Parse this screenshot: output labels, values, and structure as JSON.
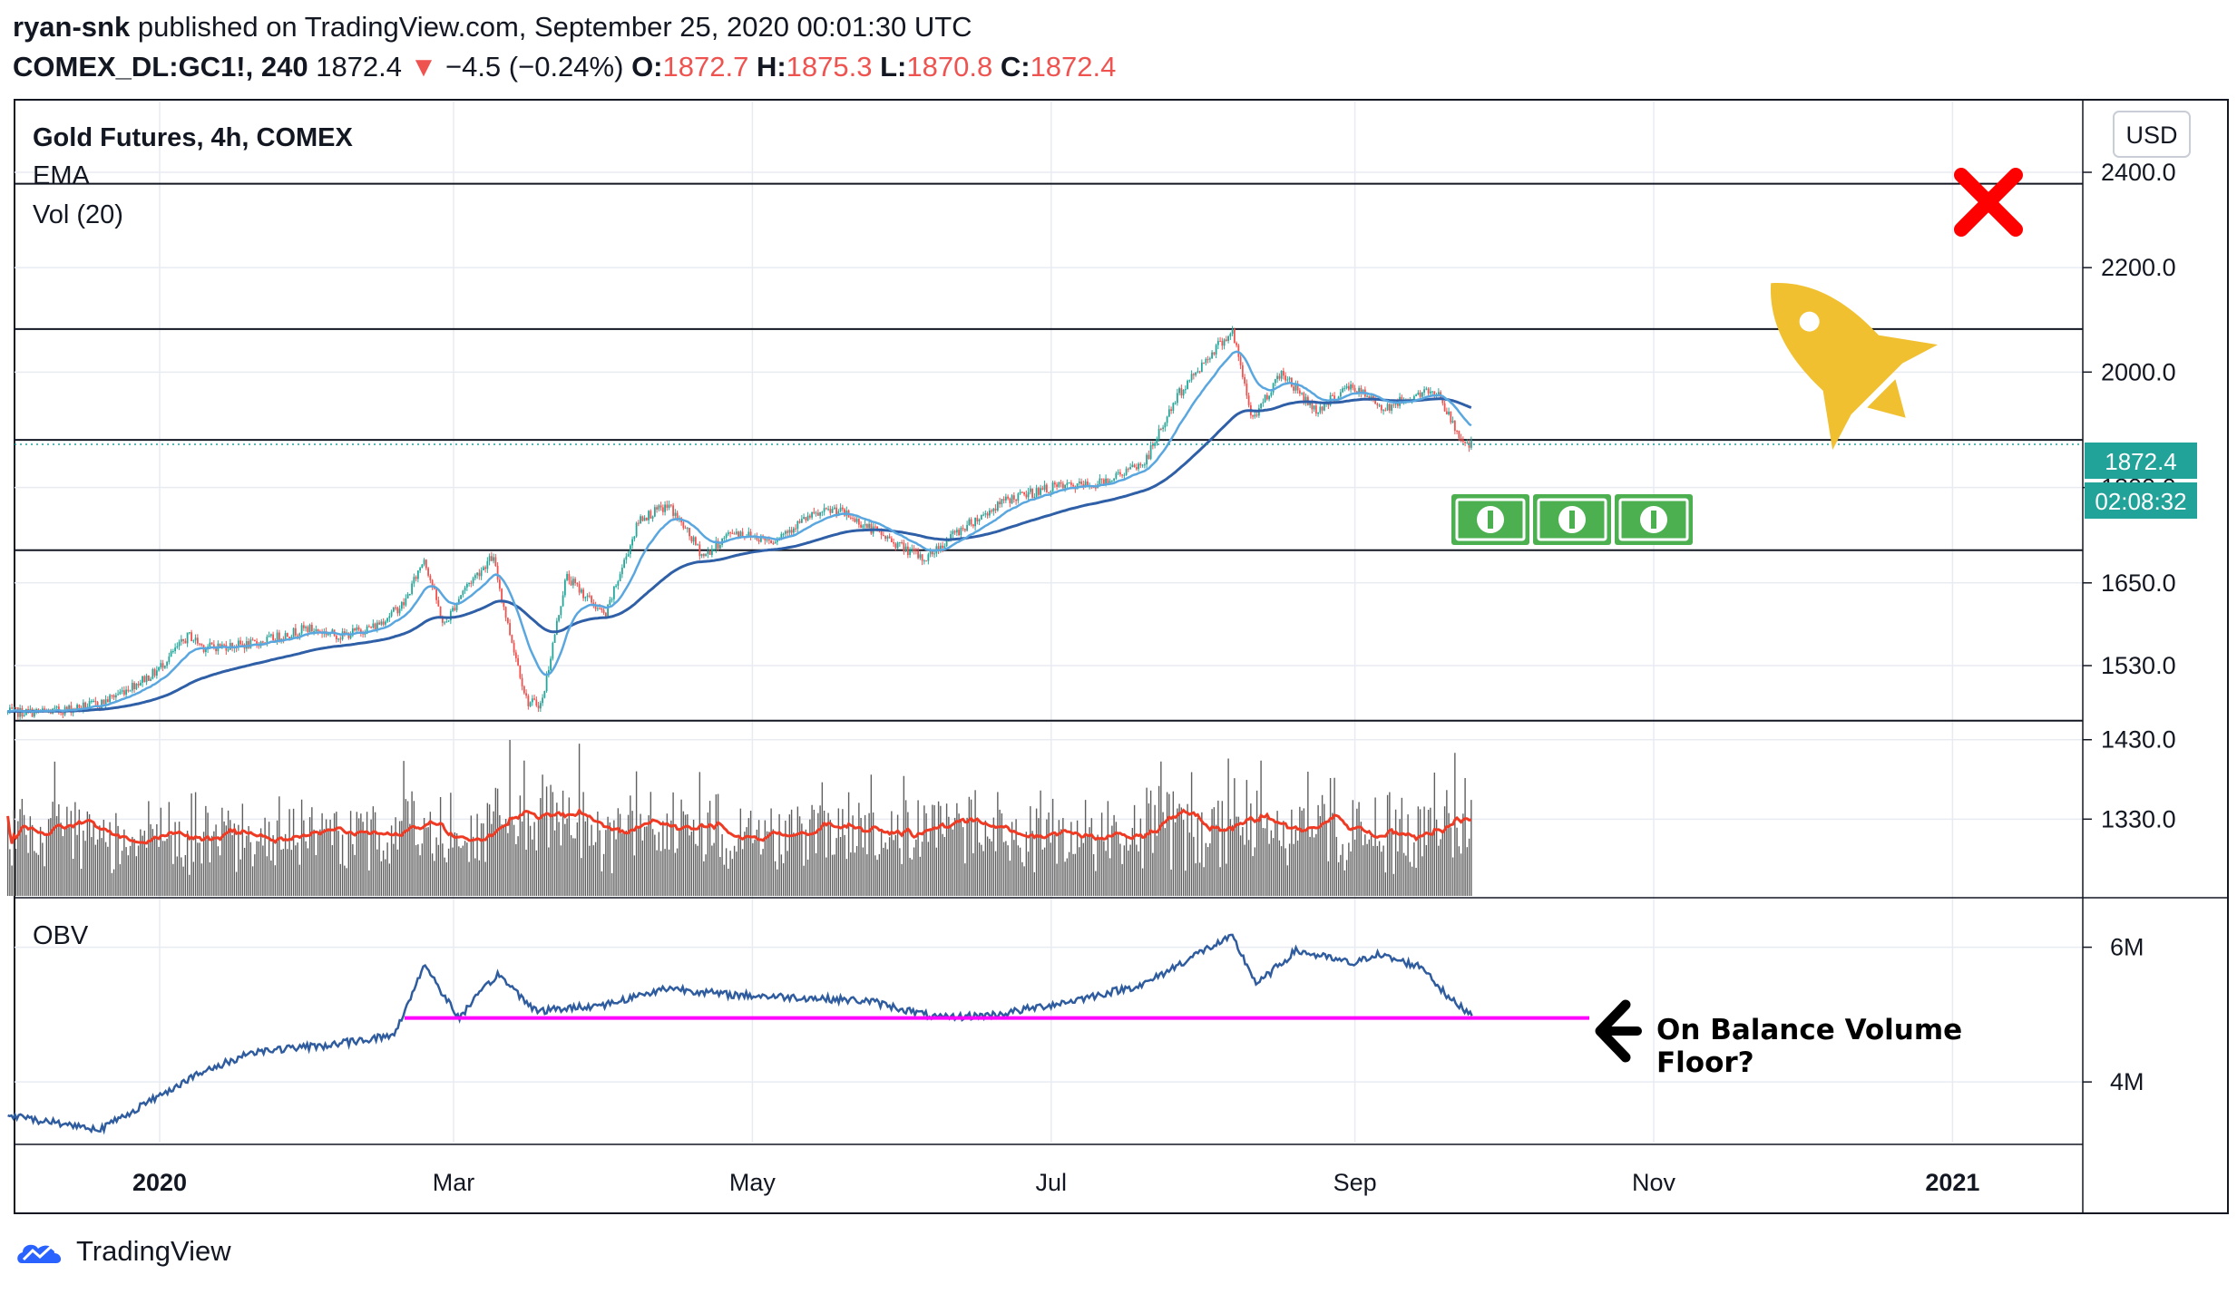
{
  "header": {
    "author": "ryan-snk",
    "published_text": "published on TradingView.com, September 25, 2020 00:01:30 UTC",
    "symbol_interval": "COMEX_DL:GC1!, 240",
    "last_price": "1872.4",
    "change_arrow": "▼",
    "change": "−4.5 (−0.24%)",
    "open_label": "O:",
    "open": "1872.7",
    "high_label": "H:",
    "high": "1875.3",
    "low_label": "L:",
    "low": "1870.8",
    "close_label": "C:",
    "close": "1872.4"
  },
  "legend": {
    "title": "Gold Futures, 4h, COMEX",
    "ema": "EMA",
    "vol": "Vol (20)",
    "obv": "OBV"
  },
  "price_axis": {
    "currency_button": "USD",
    "last_price_tag": "1872.4",
    "countdown_tag": "02:08:32"
  },
  "obv_axis": {
    "ticks": [
      {
        "label": "6M",
        "value": 6000000
      },
      {
        "label": "4M",
        "value": 4000000
      }
    ]
  },
  "annotation": {
    "line1": "On Balance Volume",
    "line2": "Floor?"
  },
  "brand": {
    "name": "TradingView"
  },
  "colors": {
    "up": "#26a69a",
    "down": "#ef5350",
    "ema_fast": "#5aa7e0",
    "ema_slow": "#2f5fa6",
    "vol_bar": "#5f5f5f",
    "vol_ma": "#ef3a24",
    "obv": "#2f5c9e",
    "floor": "#ff00ff",
    "tag_bg": "#22a39a",
    "x_mark": "#ff0000",
    "rocket": "#f0c030",
    "money": "#4caf50"
  },
  "chart_data": {
    "type": "candlestick",
    "title": "Gold Futures, 4h, COMEX",
    "x_ticks": [
      "2020",
      "Mar",
      "May",
      "Jul",
      "Sep",
      "Nov",
      "2021"
    ],
    "x_tick_dates": [
      "2020-01-01",
      "2020-03-01",
      "2020-05-01",
      "2020-07-01",
      "2020-09-01",
      "2020-11-01",
      "2021-01-01"
    ],
    "y_ticks": [
      1330,
      1430,
      1530,
      1650,
      1800,
      2000,
      2200,
      2400
    ],
    "y_range": [
      1240,
      2560
    ],
    "price_path": [
      [
        "2019-12-01",
        1466
      ],
      [
        "2019-12-10",
        1467
      ],
      [
        "2019-12-20",
        1478
      ],
      [
        "2019-12-31",
        1520
      ],
      [
        "2020-01-07",
        1573
      ],
      [
        "2020-01-10",
        1556
      ],
      [
        "2020-01-20",
        1560
      ],
      [
        "2020-01-31",
        1583
      ],
      [
        "2020-02-07",
        1572
      ],
      [
        "2020-02-14",
        1586
      ],
      [
        "2020-02-20",
        1620
      ],
      [
        "2020-02-24",
        1688
      ],
      [
        "2020-02-28",
        1585
      ],
      [
        "2020-03-03",
        1640
      ],
      [
        "2020-03-09",
        1690
      ],
      [
        "2020-03-12",
        1590
      ],
      [
        "2020-03-16",
        1480
      ],
      [
        "2020-03-19",
        1477
      ],
      [
        "2020-03-24",
        1660
      ],
      [
        "2020-04-01",
        1600
      ],
      [
        "2020-04-08",
        1750
      ],
      [
        "2020-04-14",
        1770
      ],
      [
        "2020-04-21",
        1690
      ],
      [
        "2020-04-27",
        1730
      ],
      [
        "2020-05-05",
        1715
      ],
      [
        "2020-05-12",
        1750
      ],
      [
        "2020-05-18",
        1765
      ],
      [
        "2020-05-26",
        1730
      ],
      [
        "2020-06-05",
        1685
      ],
      [
        "2020-06-12",
        1730
      ],
      [
        "2020-06-22",
        1780
      ],
      [
        "2020-07-01",
        1800
      ],
      [
        "2020-07-10",
        1805
      ],
      [
        "2020-07-20",
        1840
      ],
      [
        "2020-07-27",
        1960
      ],
      [
        "2020-08-04",
        2050
      ],
      [
        "2020-08-07",
        2075
      ],
      [
        "2020-08-11",
        1915
      ],
      [
        "2020-08-17",
        2000
      ],
      [
        "2020-08-24",
        1930
      ],
      [
        "2020-08-31",
        1975
      ],
      [
        "2020-09-07",
        1935
      ],
      [
        "2020-09-14",
        1960
      ],
      [
        "2020-09-18",
        1965
      ],
      [
        "2020-09-21",
        1905
      ],
      [
        "2020-09-24",
        1868
      ],
      [
        "2020-09-25",
        1872.4
      ]
    ],
    "last": 1872.4,
    "horizontal_levels": [
      2375,
      2080,
      1880,
      1700,
      1455
    ],
    "volume_series": {
      "name": "Vol (20)"
    },
    "obv_path": [
      [
        "2019-12-01",
        3500000
      ],
      [
        "2019-12-20",
        3300000
      ],
      [
        "2020-01-07",
        4050000
      ],
      [
        "2020-01-20",
        4450000
      ],
      [
        "2020-02-05",
        4550000
      ],
      [
        "2020-02-18",
        4700000
      ],
      [
        "2020-02-24",
        5750000
      ],
      [
        "2020-03-02",
        4950000
      ],
      [
        "2020-03-10",
        5600000
      ],
      [
        "2020-03-18",
        5050000
      ],
      [
        "2020-04-01",
        5150000
      ],
      [
        "2020-04-14",
        5400000
      ],
      [
        "2020-04-25",
        5300000
      ],
      [
        "2020-05-12",
        5250000
      ],
      [
        "2020-05-25",
        5200000
      ],
      [
        "2020-06-08",
        4950000
      ],
      [
        "2020-06-20",
        5000000
      ],
      [
        "2020-07-05",
        5200000
      ],
      [
        "2020-07-20",
        5450000
      ],
      [
        "2020-08-01",
        5950000
      ],
      [
        "2020-08-07",
        6150000
      ],
      [
        "2020-08-12",
        5450000
      ],
      [
        "2020-08-20",
        5950000
      ],
      [
        "2020-09-01",
        5750000
      ],
      [
        "2020-09-05",
        5900000
      ],
      [
        "2020-09-15",
        5700000
      ],
      [
        "2020-09-20",
        5250000
      ],
      [
        "2020-09-25",
        5000000
      ]
    ],
    "obv_floor": 4950000
  }
}
